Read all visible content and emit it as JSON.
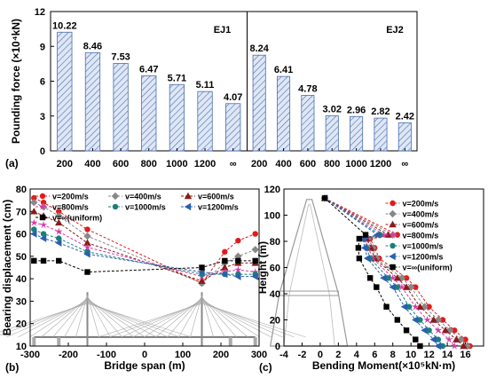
{
  "chart_data": [
    {
      "panel": "(a)",
      "type": "bar",
      "ylabel": "Pounding force (×10⁴kN)",
      "ylim": [
        0,
        12
      ],
      "yticks": [
        "0",
        "3",
        "6",
        "9",
        "12"
      ],
      "groups": [
        {
          "name": "EJ1",
          "categories": [
            "200",
            "400",
            "600",
            "800",
            "1000",
            "1200",
            "∞"
          ],
          "values": [
            10.22,
            8.46,
            7.53,
            6.47,
            5.71,
            5.11,
            4.07
          ],
          "labels": [
            "10.22",
            "8.46",
            "7.53",
            "6.47",
            "5.71",
            "5.11",
            "4.07"
          ]
        },
        {
          "name": "EJ2",
          "categories": [
            "200",
            "400",
            "600",
            "800",
            "1000",
            "1200",
            "∞"
          ],
          "values": [
            8.24,
            6.41,
            4.78,
            3.02,
            2.96,
            2.82,
            2.42
          ],
          "labels": [
            "8.24",
            "6.41",
            "4.78",
            "3.02",
            "2.96",
            "2.82",
            "2.42"
          ]
        }
      ],
      "bar_fill": "#dfe7f5",
      "bar_hatch": "#4a6fb0"
    },
    {
      "panel": "(b)",
      "type": "line",
      "xlabel": "Bridge span (m)",
      "ylabel": "Bearing displacement (cm)",
      "xlim": [
        -300,
        300
      ],
      "ylim": [
        10,
        80
      ],
      "xticks": [
        "-300",
        "-200",
        "-100",
        "0",
        "100",
        "200",
        "300"
      ],
      "yticks": [
        "10",
        "20",
        "30",
        "40",
        "50",
        "60",
        "70",
        "80"
      ],
      "x": [
        -290,
        -265,
        -225,
        -150,
        150,
        210,
        245,
        290
      ],
      "series": [
        {
          "name": "v=200m/s",
          "color": "#e31a1c",
          "marker": "circle",
          "values": [
            76,
            74,
            70,
            62,
            38,
            52,
            57,
            60
          ]
        },
        {
          "name": "v=400m/s",
          "color": "#888888",
          "marker": "diamond",
          "values": [
            74,
            72,
            68,
            59,
            38,
            47,
            50,
            53
          ]
        },
        {
          "name": "v=600m/s",
          "color": "#8b1a1a",
          "marker": "triangle",
          "values": [
            70,
            68,
            65,
            56,
            39,
            45,
            47,
            47
          ]
        },
        {
          "name": "v=800m/s",
          "color": "#d63aa8",
          "marker": "star",
          "values": [
            65,
            64,
            61,
            54,
            41,
            43,
            44,
            43
          ]
        },
        {
          "name": "v=1000m/s",
          "color": "#1a7f7a",
          "marker": "hexagon",
          "values": [
            62,
            60,
            58,
            52,
            42,
            42,
            42,
            42
          ]
        },
        {
          "name": "v=1200m/s",
          "color": "#2a5fb0",
          "marker": "tri-left",
          "values": [
            60,
            58,
            56,
            51,
            43,
            42,
            41,
            41
          ]
        },
        {
          "name": "v=∞(uniform)",
          "color": "#000000",
          "marker": "square",
          "values": [
            48,
            48,
            48,
            43,
            45,
            48,
            48,
            48
          ]
        }
      ]
    },
    {
      "panel": "(c)",
      "type": "line",
      "xlabel": "Bending Moment(×10⁵kN·m)",
      "ylabel": "Height (m)",
      "xlim": [
        -4,
        18
      ],
      "ylim": [
        0,
        120
      ],
      "xticks": [
        "-4",
        "-2",
        "0",
        "2",
        "4",
        "6",
        "8",
        "10",
        "12",
        "14",
        "16"
      ],
      "yticks": [
        "0",
        "20",
        "40",
        "60",
        "80",
        "100",
        "120"
      ],
      "y": [
        113,
        85,
        82,
        75,
        67,
        52,
        45,
        30,
        20,
        12,
        5,
        0
      ],
      "series": [
        {
          "name": "v=200m/s",
          "color": "#e31a1c",
          "marker": "circle",
          "values": [
            0.5,
            8.5,
            5.5,
            6.0,
            6.5,
            9.5,
            10.5,
            12.0,
            13.5,
            14.8,
            16.0,
            16.5
          ]
        },
        {
          "name": "v=400m/s",
          "color": "#888888",
          "marker": "diamond",
          "values": [
            0.5,
            8.0,
            5.3,
            5.8,
            6.2,
            9.0,
            10.0,
            11.5,
            13.0,
            14.3,
            15.5,
            16.2
          ]
        },
        {
          "name": "v=600m/s",
          "color": "#8b1a1a",
          "marker": "triangle",
          "values": [
            0.5,
            7.5,
            5.1,
            5.6,
            6.0,
            8.5,
            9.5,
            11.0,
            12.5,
            13.8,
            15.0,
            15.8
          ]
        },
        {
          "name": "v=800m/s",
          "color": "#d63aa8",
          "marker": "star",
          "values": [
            0.5,
            7.0,
            4.9,
            5.3,
            5.8,
            8.0,
            9.0,
            10.5,
            11.8,
            13.0,
            14.2,
            14.8
          ]
        },
        {
          "name": "v=1000m/s",
          "color": "#1a7f7a",
          "marker": "hexagon",
          "values": [
            0.5,
            6.6,
            4.8,
            5.1,
            5.5,
            7.5,
            8.5,
            9.8,
            11.0,
            12.0,
            13.0,
            13.5
          ]
        },
        {
          "name": "v=1200m/s",
          "color": "#2a5fb0",
          "marker": "tri-left",
          "values": [
            0.5,
            6.3,
            4.7,
            4.9,
            5.2,
            7.0,
            8.0,
            9.3,
            10.5,
            11.5,
            12.5,
            13.0
          ]
        },
        {
          "name": "v=∞(uniform)",
          "color": "#000000",
          "marker": "square",
          "values": [
            0.5,
            5.0,
            4.3,
            4.2,
            4.3,
            5.5,
            6.2,
            7.3,
            8.5,
            9.5,
            10.5,
            11.0
          ]
        }
      ]
    }
  ]
}
